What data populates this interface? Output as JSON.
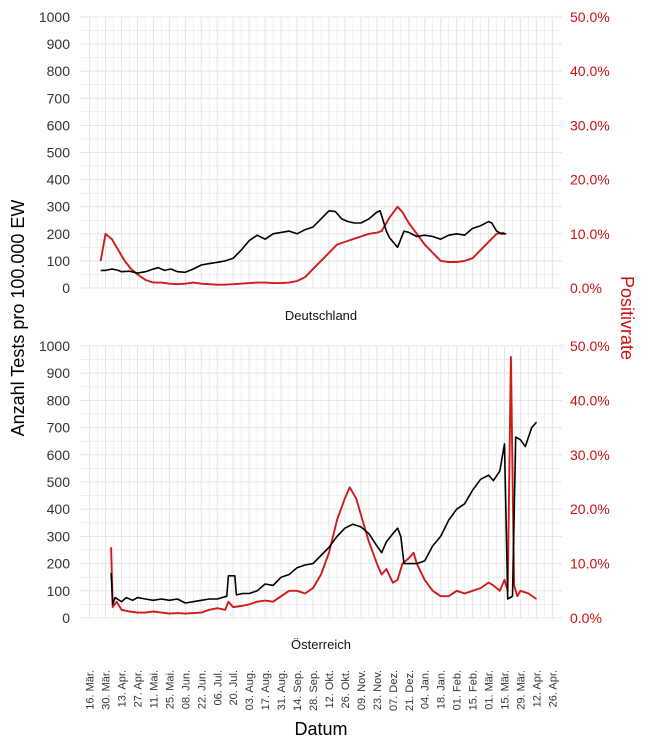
{
  "chart_data": {
    "type": "line",
    "xlabel": "Datum",
    "ylabel_left": "Anzahl Tests pro 100.000 EW",
    "ylabel_right": "Positivrate",
    "x_ticks": [
      "16. Mär.",
      "30. Mär.",
      "13. Apr.",
      "27. Apr.",
      "11. Mai.",
      "25. Mai.",
      "08. Jun.",
      "22. Jun.",
      "06. Jul.",
      "20. Jul.",
      "03. Aug.",
      "17. Aug.",
      "31. Aug.",
      "14. Sep.",
      "28. Sep.",
      "12. Okt.",
      "26. Okt.",
      "09. Nov.",
      "23. Nov.",
      "07. Dez.",
      "21. Dez.",
      "04. Jan.",
      "18. Jan.",
      "01. Feb.",
      "15. Feb.",
      "01. Mär.",
      "15. Mär.",
      "29. Mär.",
      "12. Apr.",
      "26. Apr."
    ],
    "y_left_ticks": [
      "0",
      "100",
      "200",
      "300",
      "400",
      "500",
      "600",
      "700",
      "800",
      "900",
      "1000"
    ],
    "y_right_ticks": [
      "0.0%",
      "10.0%",
      "20.0%",
      "30.0%",
      "40.0%",
      "50.0%"
    ],
    "ylim_left": [
      0,
      1000
    ],
    "ylim_right": [
      0,
      50
    ],
    "grid": true,
    "colors": {
      "tests": "#000000",
      "rate": "#d11a1a",
      "grid": "#e6e6e6",
      "right_axis": "#cc1010"
    },
    "panels": [
      {
        "label": "Deutschland",
        "series": [
          {
            "key": "tests",
            "points": [
              [
                0.7,
                65
              ],
              [
                1,
                65
              ],
              [
                1.4,
                70
              ],
              [
                1.8,
                65
              ],
              [
                2,
                60
              ],
              [
                2.5,
                62
              ],
              [
                3,
                55
              ],
              [
                3.5,
                60
              ],
              [
                4,
                70
              ],
              [
                4.3,
                75
              ],
              [
                4.7,
                65
              ],
              [
                5.1,
                70
              ],
              [
                5.5,
                60
              ],
              [
                6,
                58
              ],
              [
                6.5,
                70
              ],
              [
                7,
                85
              ],
              [
                7.5,
                90
              ],
              [
                8,
                95
              ],
              [
                8.5,
                100
              ],
              [
                9,
                110
              ],
              [
                9.5,
                140
              ],
              [
                10,
                175
              ],
              [
                10.5,
                195
              ],
              [
                11,
                180
              ],
              [
                11.5,
                200
              ],
              [
                12,
                205
              ],
              [
                12.5,
                210
              ],
              [
                13,
                200
              ],
              [
                13.5,
                215
              ],
              [
                14,
                225
              ],
              [
                14.5,
                255
              ],
              [
                15,
                285
              ],
              [
                15.4,
                282
              ],
              [
                15.8,
                255
              ],
              [
                16.2,
                245
              ],
              [
                16.6,
                240
              ],
              [
                17,
                240
              ],
              [
                17.5,
                255
              ],
              [
                18,
                280
              ],
              [
                18.2,
                285
              ],
              [
                18.6,
                210
              ],
              [
                18.8,
                185
              ],
              [
                19.3,
                150
              ],
              [
                19.7,
                210
              ],
              [
                20,
                205
              ],
              [
                20.5,
                190
              ],
              [
                21,
                195
              ],
              [
                21.5,
                190
              ],
              [
                22,
                180
              ],
              [
                22.5,
                195
              ],
              [
                23,
                200
              ],
              [
                23.5,
                195
              ],
              [
                24,
                220
              ],
              [
                24.5,
                230
              ],
              [
                25,
                245
              ],
              [
                25.2,
                240
              ],
              [
                25.5,
                210
              ],
              [
                25.8,
                200
              ],
              [
                26.1,
                200
              ]
            ]
          },
          {
            "key": "rate",
            "points": [
              [
                0.7,
                5
              ],
              [
                1,
                10
              ],
              [
                1.4,
                9
              ],
              [
                1.8,
                7
              ],
              [
                2.2,
                5
              ],
              [
                2.6,
                3.5
              ],
              [
                3,
                2.5
              ],
              [
                3.5,
                1.5
              ],
              [
                4,
                1
              ],
              [
                4.5,
                1
              ],
              [
                5,
                0.8
              ],
              [
                5.5,
                0.7
              ],
              [
                6,
                0.8
              ],
              [
                6.5,
                1
              ],
              [
                7,
                0.8
              ],
              [
                7.5,
                0.7
              ],
              [
                8,
                0.6
              ],
              [
                8.5,
                0.6
              ],
              [
                9,
                0.7
              ],
              [
                9.5,
                0.8
              ],
              [
                10,
                0.9
              ],
              [
                10.5,
                1
              ],
              [
                11,
                1
              ],
              [
                11.5,
                0.9
              ],
              [
                12,
                0.9
              ],
              [
                12.5,
                1
              ],
              [
                13,
                1.3
              ],
              [
                13.5,
                2
              ],
              [
                14,
                3.5
              ],
              [
                14.5,
                5
              ],
              [
                15,
                6.5
              ],
              [
                15.5,
                8
              ],
              [
                16,
                8.5
              ],
              [
                16.5,
                9
              ],
              [
                17,
                9.5
              ],
              [
                17.5,
                10
              ],
              [
                18,
                10.2
              ],
              [
                18.3,
                10.5
              ],
              [
                18.8,
                13
              ],
              [
                19.3,
                15
              ],
              [
                19.6,
                14
              ],
              [
                20,
                12
              ],
              [
                20.5,
                10
              ],
              [
                21,
                8
              ],
              [
                21.5,
                6.5
              ],
              [
                22,
                5
              ],
              [
                22.5,
                4.8
              ],
              [
                23,
                4.8
              ],
              [
                23.5,
                5
              ],
              [
                24,
                5.5
              ],
              [
                24.5,
                7
              ],
              [
                25,
                8.5
              ],
              [
                25.5,
                10
              ],
              [
                26,
                10.2
              ]
            ]
          }
        ]
      },
      {
        "label": "Österreich",
        "series": [
          {
            "key": "tests",
            "points": [
              [
                1.35,
                165
              ],
              [
                1.45,
                50
              ],
              [
                1.6,
                75
              ],
              [
                2,
                60
              ],
              [
                2.3,
                75
              ],
              [
                2.7,
                65
              ],
              [
                3,
                75
              ],
              [
                3.5,
                70
              ],
              [
                4,
                65
              ],
              [
                4.5,
                70
              ],
              [
                5,
                65
              ],
              [
                5.5,
                70
              ],
              [
                6,
                55
              ],
              [
                6.5,
                60
              ],
              [
                7,
                65
              ],
              [
                7.5,
                70
              ],
              [
                8,
                70
              ],
              [
                8.6,
                80
              ],
              [
                8.7,
                155
              ],
              [
                9.1,
                155
              ],
              [
                9.2,
                85
              ],
              [
                9.6,
                90
              ],
              [
                10,
                90
              ],
              [
                10.5,
                100
              ],
              [
                11,
                125
              ],
              [
                11.5,
                120
              ],
              [
                12,
                150
              ],
              [
                12.5,
                160
              ],
              [
                13,
                185
              ],
              [
                13.5,
                195
              ],
              [
                14,
                200
              ],
              [
                14.5,
                230
              ],
              [
                15,
                260
              ],
              [
                15.5,
                300
              ],
              [
                16,
                330
              ],
              [
                16.5,
                345
              ],
              [
                17,
                335
              ],
              [
                17.5,
                310
              ],
              [
                18,
                265
              ],
              [
                18.3,
                240
              ],
              [
                18.6,
                280
              ],
              [
                19,
                310
              ],
              [
                19.3,
                330
              ],
              [
                19.5,
                300
              ],
              [
                19.7,
                200
              ],
              [
                20,
                200
              ],
              [
                20.5,
                200
              ],
              [
                21,
                210
              ],
              [
                21.5,
                265
              ],
              [
                22,
                300
              ],
              [
                22.5,
                360
              ],
              [
                23,
                400
              ],
              [
                23.5,
                420
              ],
              [
                24,
                470
              ],
              [
                24.5,
                510
              ],
              [
                25,
                525
              ],
              [
                25.3,
                505
              ],
              [
                25.7,
                540
              ],
              [
                26,
                640
              ],
              [
                26.2,
                70
              ],
              [
                26.5,
                80
              ],
              [
                26.7,
                665
              ],
              [
                27,
                655
              ],
              [
                27.3,
                630
              ],
              [
                27.7,
                700
              ],
              [
                28,
                720
              ]
            ]
          },
          {
            "key": "rate",
            "points": [
              [
                1.35,
                13
              ],
              [
                1.45,
                2
              ],
              [
                1.7,
                3
              ],
              [
                2,
                1.5
              ],
              [
                2.5,
                1.2
              ],
              [
                3,
                1
              ],
              [
                3.5,
                1
              ],
              [
                4,
                1.2
              ],
              [
                4.5,
                1
              ],
              [
                5,
                0.8
              ],
              [
                5.5,
                0.9
              ],
              [
                6,
                0.8
              ],
              [
                6.5,
                0.9
              ],
              [
                7,
                1
              ],
              [
                7.5,
                1.5
              ],
              [
                8,
                1.8
              ],
              [
                8.5,
                1.5
              ],
              [
                8.7,
                3
              ],
              [
                9,
                2
              ],
              [
                9.5,
                2.2
              ],
              [
                10,
                2.5
              ],
              [
                10.5,
                3
              ],
              [
                11,
                3.2
              ],
              [
                11.5,
                3
              ],
              [
                12,
                4
              ],
              [
                12.5,
                5
              ],
              [
                13,
                5
              ],
              [
                13.5,
                4.5
              ],
              [
                14,
                5.5
              ],
              [
                14.5,
                8
              ],
              [
                15,
                12
              ],
              [
                15.5,
                18
              ],
              [
                16,
                22
              ],
              [
                16.3,
                24
              ],
              [
                16.7,
                22
              ],
              [
                17,
                19
              ],
              [
                17.5,
                14
              ],
              [
                18,
                10
              ],
              [
                18.3,
                8
              ],
              [
                18.6,
                9
              ],
              [
                19,
                6.5
              ],
              [
                19.3,
                7
              ],
              [
                19.6,
                10
              ],
              [
                20,
                11
              ],
              [
                20.3,
                12
              ],
              [
                20.5,
                10
              ],
              [
                21,
                7
              ],
              [
                21.5,
                5
              ],
              [
                22,
                4
              ],
              [
                22.5,
                4
              ],
              [
                23,
                5
              ],
              [
                23.5,
                4.5
              ],
              [
                24,
                5
              ],
              [
                24.5,
                5.5
              ],
              [
                25,
                6.5
              ],
              [
                25.3,
                6
              ],
              [
                25.7,
                5
              ],
              [
                26,
                7
              ],
              [
                26.2,
                5
              ],
              [
                26.4,
                48
              ],
              [
                26.6,
                6
              ],
              [
                26.8,
                4
              ],
              [
                27,
                5
              ],
              [
                27.5,
                4.5
              ],
              [
                28,
                3.5
              ]
            ]
          }
        ]
      }
    ]
  }
}
